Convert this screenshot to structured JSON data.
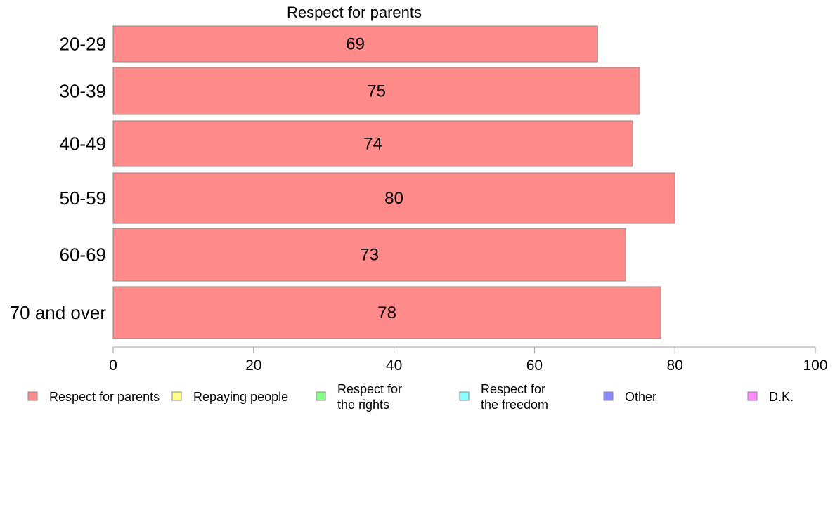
{
  "chart_data": {
    "type": "bar",
    "orientation": "horizontal",
    "title": "Respect for parents",
    "categories": [
      "20-29",
      "30-39",
      "40-49",
      "50-59",
      "60-69",
      "70 and over"
    ],
    "series": [
      {
        "name": "Respect for parents",
        "values": [
          69,
          75,
          74,
          80,
          73,
          78
        ]
      }
    ],
    "data_labels": [
      "69",
      "75",
      "74",
      "80",
      "73",
      "78"
    ],
    "xlim": [
      0,
      100
    ],
    "xticks": [
      0,
      20,
      40,
      60,
      80,
      100
    ],
    "xtick_labels": [
      "0",
      "20",
      "40",
      "60",
      "80",
      "100"
    ],
    "grid": false,
    "legend_position": "bottom",
    "legend": [
      {
        "lines": [
          "Respect for parents"
        ],
        "color": "#ff8a8a"
      },
      {
        "lines": [
          "Repaying people"
        ],
        "color": "#ffff8a"
      },
      {
        "lines": [
          "Respect for",
          "the rights"
        ],
        "color": "#8aff8a"
      },
      {
        "lines": [
          "Respect for",
          "the freedom"
        ],
        "color": "#8affff"
      },
      {
        "lines": [
          "Other"
        ],
        "color": "#8a8aff"
      },
      {
        "lines": [
          "D.K."
        ],
        "color": "#ff8aff"
      }
    ],
    "bar_color": "#ff8a8a",
    "bar_border_color": "#8a8a8a",
    "axis_color": "#9aa0a6"
  }
}
